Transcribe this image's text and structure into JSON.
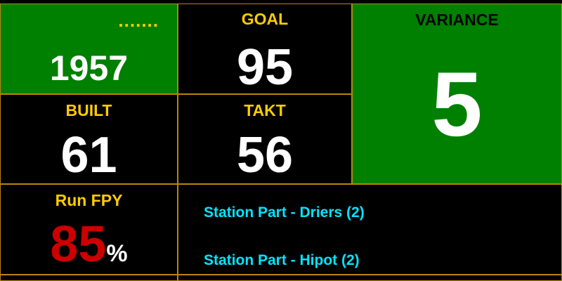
{
  "board": {
    "top_left": {
      "label": ".......",
      "value": "1957"
    },
    "goal": {
      "label": "GOAL",
      "value": "95"
    },
    "variance": {
      "label": "VARIANCE",
      "value": "5"
    },
    "built": {
      "label": "BUILT",
      "value": "61"
    },
    "takt": {
      "label": "TAKT",
      "value": "56"
    },
    "run_fpy": {
      "label": "Run FPY",
      "value": "85",
      "unit": "%"
    },
    "stations": [
      "Station Part - Driers (2)",
      "Station Part - Hipot (2)"
    ]
  },
  "colors": {
    "green": "#008000",
    "label_yellow": "#ffcc00",
    "value_white": "#ffffff",
    "fpy_red": "#cc0000",
    "station_cyan": "#00e5ff",
    "grid_line": "#b8860b"
  }
}
